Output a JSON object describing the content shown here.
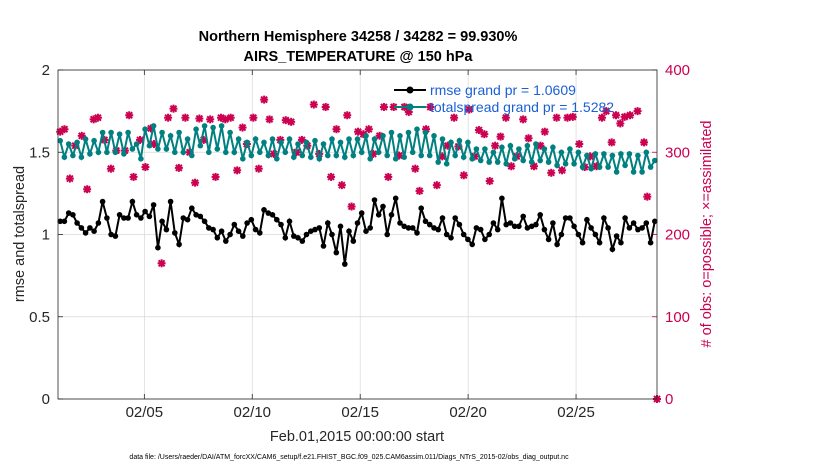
{
  "title_line1": "Northern Hemisphere 34258 / 34282 = 99.930%",
  "title_line2": "AIRS_TEMPERATURE @ 150 hPa",
  "footer": "data file: /Users/raeder/DAI/ATM_forcXX/CAM6_setup/f.e21.FHIST_BGC.f09_025.CAM6assim.011/Diags_NTrS_2015-02/obs_diag_output.nc",
  "chart_data": {
    "type": "line",
    "title": "Northern Hemisphere 34258 / 34282 = 99.930% AIRS_TEMPERATURE @ 150 hPa",
    "xlabel": "Feb.01,2015 00:00:00 start",
    "ylabel": "rmse and totalspread",
    "y2label": "# of obs: o=possible; ×=assimilated",
    "x_tick_labels": [
      "02/05",
      "02/10",
      "02/15",
      "02/20",
      "02/25"
    ],
    "x_tick_days": [
      5,
      10,
      15,
      20,
      25
    ],
    "xlim": [
      1,
      28.75
    ],
    "ylim": [
      0,
      2
    ],
    "y_ticks": [
      "0",
      "0.5",
      "1",
      "1.5",
      "2"
    ],
    "y2lim": [
      0,
      400
    ],
    "y2_ticks": [
      "0",
      "100",
      "200",
      "300",
      "400"
    ],
    "grid": true,
    "legend_position": "top-right",
    "colors": {
      "rmse": "#000000",
      "spread": "#008080",
      "obs": "#cc0050",
      "grid": "#d8d8d8"
    },
    "series": [
      {
        "name": "rmse grand pr = 1.0609",
        "axis": "left",
        "values": [
          1.08,
          1.08,
          1.13,
          1.12,
          1.07,
          1.04,
          1.01,
          1.04,
          1.02,
          1.07,
          1.2,
          1.1,
          1.0,
          0.99,
          1.12,
          1.1,
          1.1,
          1.2,
          1.12,
          1.1,
          1.14,
          1.11,
          1.18,
          0.92,
          1.08,
          1.03,
          1.2,
          1.01,
          0.94,
          1.1,
          1.09,
          1.16,
          1.12,
          1.11,
          1.08,
          1.04,
          1.03,
          0.98,
          1.02,
          0.96,
          1.0,
          1.06,
          1.02,
          0.99,
          1.07,
          1.09,
          1.03,
          1.01,
          1.15,
          1.13,
          1.12,
          1.09,
          1.06,
          0.98,
          1.08,
          0.99,
          0.98,
          0.96,
          1.0,
          1.02,
          1.03,
          1.04,
          0.93,
          1.07,
          1.0,
          0.89,
          1.05,
          0.82,
          1.02,
          0.96,
          1.07,
          1.13,
          1.02,
          1.04,
          1.21,
          1.12,
          1.17,
          1.0,
          1.12,
          1.22,
          1.07,
          1.05,
          1.04,
          1.04,
          1.01,
          1.16,
          1.08,
          1.06,
          1.04,
          1.03,
          1.1,
          1.0,
          0.98,
          1.1,
          1.06,
          1.0,
          0.97,
          0.94,
          1.04,
          1.03,
          0.97,
          1.0,
          1.07,
          1.03,
          1.22,
          1.06,
          1.07,
          1.05,
          1.05,
          1.11,
          1.04,
          1.05,
          1.06,
          1.12,
          1.03,
          0.97,
          1.07,
          0.94,
          1.0,
          1.1,
          1.1,
          1.05,
          1.0,
          0.95,
          1.09,
          1.04,
          1.0,
          0.95,
          1.1,
          1.04,
          0.91,
          0.99,
          0.95,
          1.1,
          1.04,
          1.07,
          1.03,
          1.04,
          1.07,
          0.95,
          1.08
        ]
      },
      {
        "name": "totalspread grand pr = 1.5282",
        "axis": "left",
        "values": [
          1.57,
          1.47,
          1.55,
          1.48,
          1.56,
          1.47,
          1.58,
          1.49,
          1.57,
          1.5,
          1.62,
          1.5,
          1.62,
          1.5,
          1.61,
          1.49,
          1.62,
          1.52,
          1.55,
          1.46,
          1.64,
          1.54,
          1.66,
          1.52,
          1.62,
          1.52,
          1.6,
          1.5,
          1.62,
          1.5,
          1.58,
          1.48,
          1.64,
          1.54,
          1.66,
          1.5,
          1.65,
          1.52,
          1.66,
          1.5,
          1.62,
          1.5,
          1.58,
          1.46,
          1.56,
          1.48,
          1.58,
          1.5,
          1.56,
          1.48,
          1.58,
          1.46,
          1.56,
          1.5,
          1.58,
          1.47,
          1.55,
          1.48,
          1.56,
          1.47,
          1.57,
          1.46,
          1.55,
          1.48,
          1.58,
          1.48,
          1.56,
          1.47,
          1.58,
          1.48,
          1.58,
          1.5,
          1.6,
          1.46,
          1.58,
          1.5,
          1.6,
          1.48,
          1.62,
          1.46,
          1.6,
          1.47,
          1.62,
          1.5,
          1.64,
          1.48,
          1.62,
          1.48,
          1.6,
          1.44,
          1.58,
          1.43,
          1.56,
          1.48,
          1.57,
          1.47,
          1.56,
          1.46,
          1.52,
          1.45,
          1.52,
          1.44,
          1.5,
          1.44,
          1.53,
          1.43,
          1.54,
          1.46,
          1.52,
          1.45,
          1.54,
          1.44,
          1.55,
          1.45,
          1.52,
          1.44,
          1.53,
          1.42,
          1.5,
          1.43,
          1.52,
          1.43,
          1.5,
          1.41,
          1.48,
          1.4,
          1.49,
          1.41,
          1.49,
          1.41,
          1.48,
          1.38,
          1.49,
          1.42,
          1.49,
          1.38,
          1.48,
          1.38,
          1.5,
          1.41,
          1.45
        ]
      },
      {
        "name": "obs possible",
        "axis": "right",
        "points": [
          [
            1.1,
            325
          ],
          [
            1.3,
            328
          ],
          [
            1.55,
            268
          ],
          [
            1.8,
            308
          ],
          [
            2.1,
            320
          ],
          [
            2.35,
            255
          ],
          [
            2.65,
            340
          ],
          [
            2.85,
            342
          ],
          [
            3.15,
            315
          ],
          [
            3.45,
            280
          ],
          [
            3.7,
            302
          ],
          [
            4.1,
            302
          ],
          [
            4.3,
            345
          ],
          [
            4.5,
            270
          ],
          [
            4.8,
            315
          ],
          [
            5.05,
            282
          ],
          [
            5.3,
            329
          ],
          [
            5.45,
            310
          ],
          [
            5.8,
            165
          ],
          [
            6.1,
            342
          ],
          [
            6.35,
            353
          ],
          [
            6.6,
            281
          ],
          [
            6.9,
            342
          ],
          [
            7.1,
            300
          ],
          [
            7.35,
            263
          ],
          [
            7.55,
            341
          ],
          [
            7.75,
            315
          ],
          [
            8.05,
            340
          ],
          [
            8.3,
            270
          ],
          [
            8.55,
            342
          ],
          [
            8.75,
            340
          ],
          [
            9.0,
            342
          ],
          [
            9.3,
            278
          ],
          [
            9.55,
            330
          ],
          [
            9.75,
            310
          ],
          [
            10.05,
            342
          ],
          [
            10.3,
            280
          ],
          [
            10.55,
            364
          ],
          [
            10.8,
            340
          ],
          [
            11.0,
            298
          ],
          [
            11.3,
            315
          ],
          [
            11.55,
            339
          ],
          [
            11.8,
            337
          ],
          [
            12.05,
            300
          ],
          [
            12.3,
            315
          ],
          [
            12.55,
            308
          ],
          [
            12.85,
            358
          ],
          [
            13.1,
            298
          ],
          [
            13.4,
            355
          ],
          [
            13.65,
            270
          ],
          [
            13.9,
            328
          ],
          [
            14.15,
            260
          ],
          [
            14.4,
            345
          ],
          [
            14.6,
            234
          ],
          [
            14.9,
            325
          ],
          [
            15.15,
            322
          ],
          [
            15.4,
            328
          ],
          [
            15.6,
            298
          ],
          [
            15.9,
            320
          ],
          [
            16.1,
            355
          ],
          [
            16.3,
            270
          ],
          [
            16.55,
            355
          ],
          [
            16.8,
            296
          ],
          [
            17.05,
            355
          ],
          [
            17.25,
            349
          ],
          [
            17.55,
            280
          ],
          [
            17.75,
            253
          ],
          [
            18.05,
            328
          ],
          [
            18.25,
            355
          ],
          [
            18.55,
            260
          ],
          [
            18.8,
            295
          ],
          [
            19.05,
            308
          ],
          [
            19.35,
            342
          ],
          [
            19.55,
            307
          ],
          [
            19.8,
            272
          ],
          [
            20.05,
            352
          ],
          [
            20.3,
            295
          ],
          [
            20.5,
            327
          ],
          [
            20.75,
            322
          ],
          [
            21.0,
            265
          ],
          [
            21.25,
            308
          ],
          [
            21.5,
            319
          ],
          [
            21.75,
            342
          ],
          [
            22.0,
            283
          ],
          [
            22.25,
            295
          ],
          [
            22.55,
            340
          ],
          [
            22.8,
            317
          ],
          [
            23.05,
            283
          ],
          [
            23.35,
            308
          ],
          [
            23.55,
            325
          ],
          [
            23.85,
            275
          ],
          [
            24.1,
            342
          ],
          [
            24.35,
            278
          ],
          [
            24.6,
            342
          ],
          [
            24.85,
            343
          ],
          [
            25.15,
            310
          ],
          [
            25.4,
            282
          ],
          [
            25.65,
            295
          ],
          [
            25.95,
            283
          ],
          [
            26.2,
            342
          ],
          [
            26.4,
            350
          ],
          [
            26.65,
            312
          ],
          [
            26.85,
            345
          ],
          [
            27.05,
            335
          ],
          [
            27.25,
            343
          ],
          [
            27.5,
            345
          ],
          [
            27.85,
            350
          ],
          [
            28.15,
            312
          ],
          [
            28.3,
            246
          ],
          [
            28.75,
            0
          ]
        ]
      }
    ]
  }
}
